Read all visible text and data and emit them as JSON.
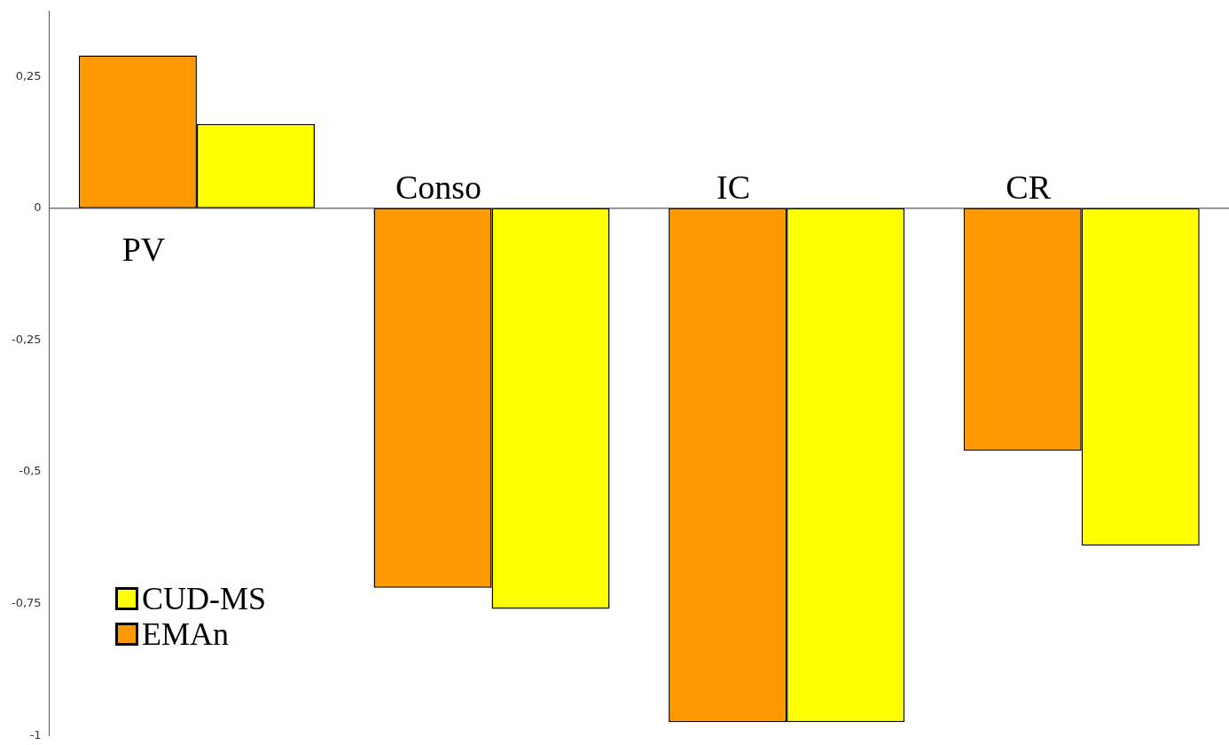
{
  "chart_data": {
    "type": "bar",
    "categories": [
      "PV",
      "Conso",
      "IC",
      "CR"
    ],
    "series": [
      {
        "name": "EMAn",
        "color": "#ff9900",
        "values": [
          0.29,
          -0.72,
          -0.975,
          -0.46
        ]
      },
      {
        "name": "CUD-MS",
        "color": "#ffff00",
        "values": [
          0.16,
          -0.76,
          -0.975,
          -0.64
        ]
      }
    ],
    "ylim": [
      -1,
      0.375
    ],
    "yticks": [
      {
        "value": -1,
        "label": "-1"
      },
      {
        "value": -0.75,
        "label": "-0,75"
      },
      {
        "value": -0.5,
        "label": "-0,5"
      },
      {
        "value": -0.25,
        "label": "-0,25"
      },
      {
        "value": 0,
        "label": "0"
      },
      {
        "value": 0.25,
        "label": "0,25"
      }
    ],
    "legend": "bottom left"
  }
}
